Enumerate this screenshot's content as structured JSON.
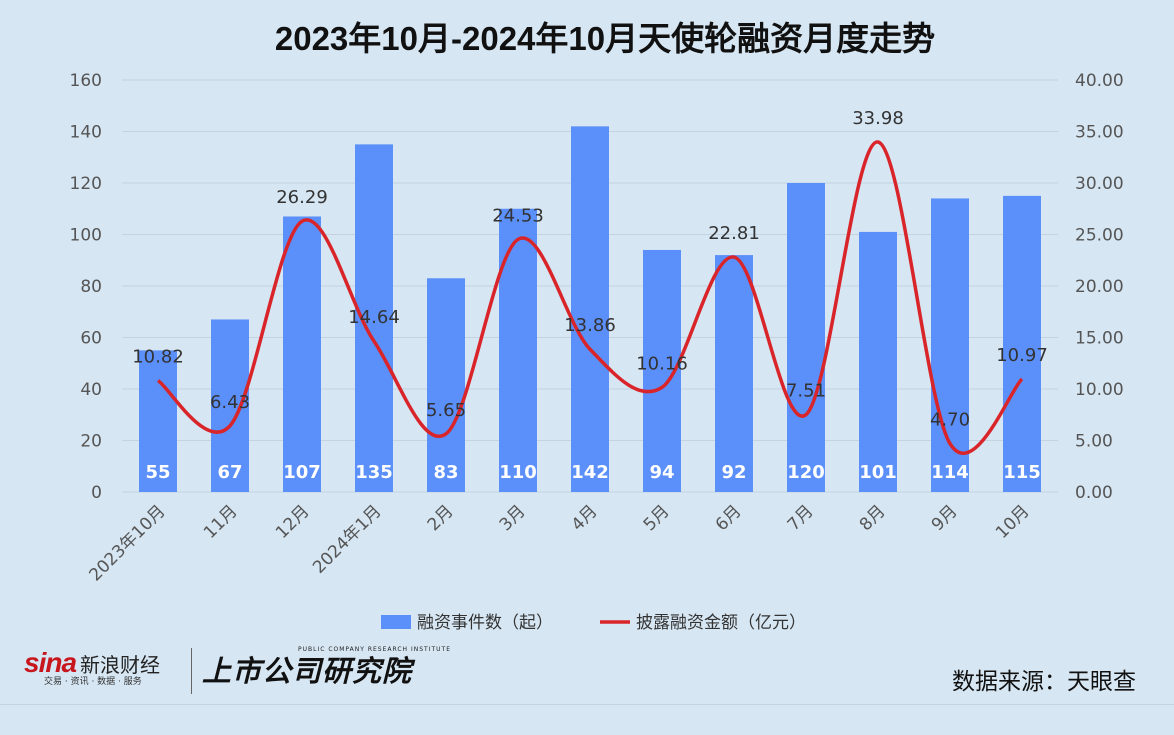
{
  "chart_data": {
    "type": "bar",
    "title": "2023年10月-2024年10月天使轮融资月度走势",
    "categories": [
      "2023年10月",
      "11月",
      "12月",
      "2024年1月",
      "2月",
      "3月",
      "4月",
      "5月",
      "6月",
      "7月",
      "8月",
      "9月",
      "10月"
    ],
    "series": [
      {
        "name": "融资事件数（起）",
        "type": "bar",
        "axis": "left",
        "color": "#5b8ff9",
        "values": [
          55,
          67,
          107,
          135,
          83,
          110,
          142,
          94,
          92,
          120,
          101,
          114,
          115
        ],
        "labels": [
          "55",
          "67",
          "107",
          "135",
          "83",
          "110",
          "142",
          "94",
          "92",
          "120",
          "101",
          "114",
          "115"
        ]
      },
      {
        "name": "披露融资金额（亿元）",
        "type": "line",
        "smooth": true,
        "axis": "right",
        "color": "#d9252a",
        "values": [
          10.82,
          6.43,
          26.29,
          14.64,
          5.65,
          24.53,
          13.86,
          10.16,
          22.81,
          7.51,
          33.98,
          4.7,
          10.97
        ],
        "labels": [
          "10.82",
          "6.43",
          "26.29",
          "14.64",
          "5.65",
          "24.53",
          "13.86",
          "10.16",
          "22.81",
          "7.51",
          "33.98",
          "4.70",
          "10.97"
        ]
      }
    ],
    "ylim_left": [
      0,
      160
    ],
    "yticks_left": [
      "0",
      "20",
      "40",
      "60",
      "80",
      "100",
      "120",
      "140",
      "160"
    ],
    "ylim_right": [
      0,
      40
    ],
    "yticks_right": [
      "0.00",
      "5.00",
      "10.00",
      "15.00",
      "20.00",
      "25.00",
      "30.00",
      "35.00",
      "40.00"
    ],
    "grid": true,
    "legend": "bottom"
  },
  "footer": {
    "sina_logo": "sina",
    "sina_name": "新浪财经",
    "sina_sub": "交易 · 资讯 · 数据 · 服务",
    "research_en": "PUBLIC COMPANY RESEARCH INSTITUTE",
    "research_cn": "上市公司研究院",
    "source": "数据来源：天眼查"
  }
}
